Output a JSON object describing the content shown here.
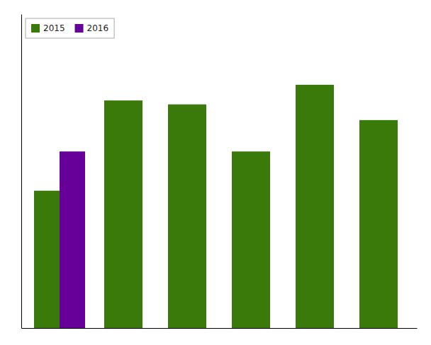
{
  "chart_data": {
    "type": "bar",
    "categories": [
      null,
      null,
      null,
      null,
      null,
      null
    ],
    "series": [
      {
        "name": "2015",
        "color": "#3a7a0a",
        "values": [
          3.5,
          5.8,
          5.7,
          4.5,
          6.2,
          5.3
        ]
      },
      {
        "name": "2016",
        "color": "#660099",
        "values": [
          4.5,
          null,
          null,
          null,
          null,
          null
        ]
      }
    ],
    "ylim": [
      0,
      8
    ],
    "tick_labels": false,
    "legend": "top-left"
  }
}
